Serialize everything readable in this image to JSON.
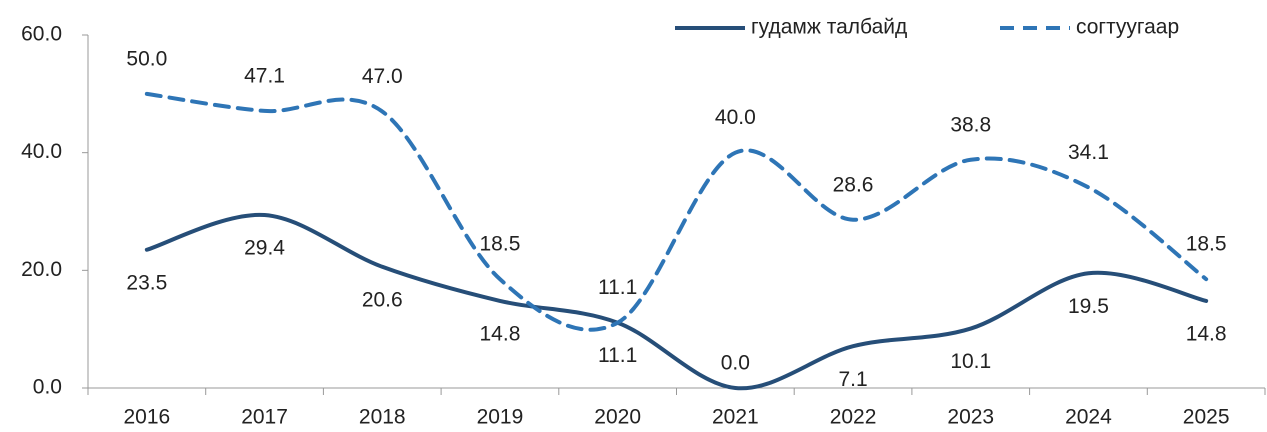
{
  "chart_data": {
    "type": "line",
    "categories": [
      "2016",
      "2017",
      "2018",
      "2019",
      "2020",
      "2021",
      "2022",
      "2023",
      "2024",
      "2025"
    ],
    "series": [
      {
        "name": "гудамж талбайд",
        "color": "#264e78",
        "dash": false,
        "values": [
          23.5,
          29.4,
          20.6,
          14.8,
          11.1,
          0.0,
          7.1,
          10.1,
          19.5,
          14.8
        ],
        "value_labels": [
          "23.5",
          "29.4",
          "20.6",
          "14.8",
          "11.1",
          "0.0",
          "7.1",
          "10.1",
          "19.5",
          "14.8"
        ]
      },
      {
        "name": "согтуугаар",
        "color": "#2e75b6",
        "dash": true,
        "values": [
          50.0,
          47.1,
          47.0,
          18.5,
          11.1,
          40.0,
          28.6,
          38.8,
          34.1,
          18.5
        ],
        "value_labels": [
          "50.0",
          "47.1",
          "47.0",
          "18.5",
          "11.1",
          "40.0",
          "28.6",
          "38.8",
          "34.1",
          "18.5"
        ]
      }
    ],
    "ylim": [
      0,
      60
    ],
    "yticks": [
      {
        "value": 0,
        "label": "0.0"
      },
      {
        "value": 20,
        "label": "20.0"
      },
      {
        "value": 40,
        "label": "40.0"
      },
      {
        "value": 60,
        "label": "60.0"
      }
    ],
    "legend": "top-right",
    "smooth": true
  }
}
